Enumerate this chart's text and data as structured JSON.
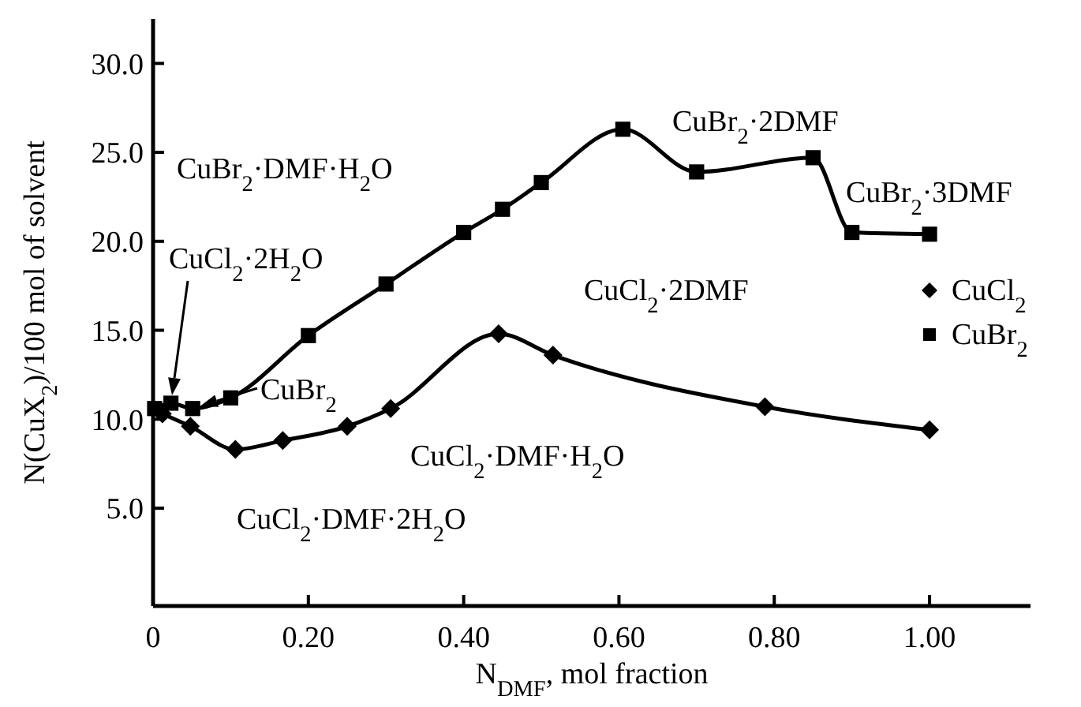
{
  "chart_data": {
    "type": "line",
    "xlabel": "N$_{DMF}$, mol fraction",
    "ylabel": "N(CuX$_{2}$)/100 mol of solvent",
    "xlim": [
      0,
      1.13
    ],
    "ylim": [
      -0.5,
      32.5
    ],
    "xticks": [
      0,
      {
        "value": 0.2,
        "label": "0.20"
      },
      {
        "value": 0.4,
        "label": "0.40"
      },
      {
        "value": 0.6,
        "label": "0.60"
      },
      {
        "value": 0.8,
        "label": "0.80"
      },
      {
        "value": 1,
        "label": "1.00"
      }
    ],
    "yticks": [
      {
        "value": 5,
        "label": "5.0"
      },
      {
        "value": 10,
        "label": "10.0"
      },
      {
        "value": 15,
        "label": "15.0"
      },
      {
        "value": 20,
        "label": "20.0"
      },
      {
        "value": 25,
        "label": "25.0"
      },
      {
        "value": 30,
        "label": "30.0"
      }
    ],
    "grid": false,
    "legend": "right",
    "series": [
      {
        "name": "CuCl$_{2}$",
        "color": "#000000",
        "marker": "diamond",
        "x": [
          0.012,
          0.048,
          0.106,
          0.167,
          0.25,
          0.306,
          0.445,
          0.515,
          0.788,
          1.0
        ],
        "values": [
          10.3,
          9.6,
          8.3,
          8.8,
          9.6,
          10.6,
          14.8,
          13.6,
          10.7,
          9.4
        ]
      },
      {
        "name": "CuBr$_{2}$",
        "color": "#000000",
        "marker": "square",
        "x": [
          0.002,
          0.023,
          0.051,
          0.1,
          0.2,
          0.3,
          0.4,
          0.45,
          0.5,
          0.605,
          0.7,
          0.85,
          0.9,
          1.0
        ],
        "values": [
          10.6,
          10.9,
          10.6,
          11.2,
          14.7,
          17.6,
          20.5,
          21.8,
          23.3,
          26.3,
          23.9,
          24.7,
          20.5,
          20.4
        ]
      }
    ],
    "annotations": [
      "CuBr$_{2}$·DMF·H$_{2}$O",
      "CuCl$_{2}$·2H$_{2}$O",
      {
        "text": "CuBr$_{2}$",
        "x": 0.051,
        "y": 10.6
      },
      "CuBr$_{2}$·2DMF",
      "CuBr$_{2}$·3DMF",
      "CuCl$_{2}$·2DMF",
      "CuCl$_{2}$·DMF·H$_{2}$O",
      "CuCl$_{2}$·DMF·2H$_{2}$O"
    ]
  }
}
